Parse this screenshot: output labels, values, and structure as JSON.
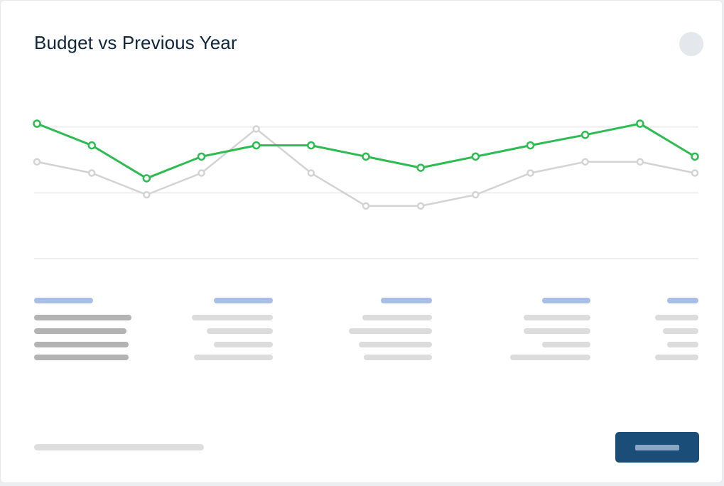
{
  "card": {
    "title": "Budget vs Previous Year"
  },
  "icons": {
    "menu": "menu-dot-icon"
  },
  "colors": {
    "current_series": "#2dbb52",
    "previous_series": "#d3d3d3",
    "gridline": "#eeeeee",
    "button": "#1a4d78",
    "skeleton_header": "#a9bde9"
  },
  "chart_data": {
    "type": "line",
    "x": [
      1,
      2,
      3,
      4,
      5,
      6,
      7,
      8,
      9,
      10,
      11,
      12,
      13
    ],
    "ylim": [
      0,
      4
    ],
    "grid": true,
    "gridlines": [
      1,
      2,
      3
    ],
    "series": [
      {
        "role": "current",
        "values": [
          3.05,
          2.72,
          2.22,
          2.55,
          2.72,
          2.72,
          2.55,
          2.38,
          2.55,
          2.72,
          2.88,
          3.05,
          2.55
        ]
      },
      {
        "role": "previous",
        "values": [
          2.47,
          2.3,
          1.97,
          2.3,
          2.97,
          2.3,
          1.8,
          1.8,
          1.97,
          2.3,
          2.47,
          2.47,
          2.3
        ]
      }
    ]
  }
}
